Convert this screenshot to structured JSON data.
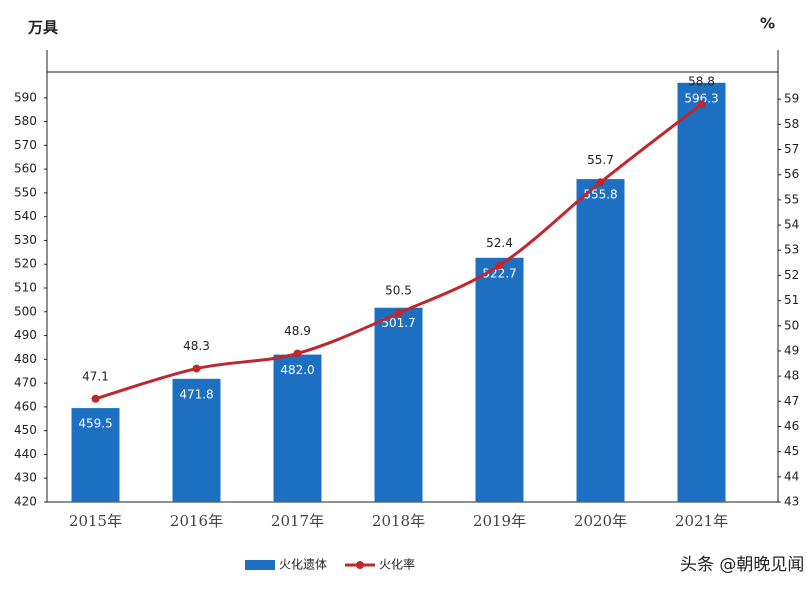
{
  "chart_data": {
    "type": "bar-line",
    "y_unit": "万具",
    "y2_unit": "%",
    "categories": [
      "2015年",
      "2016年",
      "2017年",
      "2018年",
      "2019年",
      "2020年",
      "2021年"
    ],
    "series": [
      {
        "name": "火化遗体",
        "type": "bar",
        "color": "#1c6fc1",
        "values": [
          459.5,
          471.8,
          482,
          501.7,
          522.7,
          555.8,
          596.3
        ],
        "value_labels": [
          "459.5",
          "471.8",
          "482.0",
          "501.7",
          "522.7",
          "555.8",
          "596.3"
        ]
      },
      {
        "name": "火化率",
        "type": "line",
        "axis": "y2",
        "color": "#c0272d",
        "values": [
          47.1,
          48.3,
          48.9,
          50.5,
          52.4,
          55.7,
          58.8
        ]
      }
    ],
    "ylim": [
      420,
      600
    ],
    "yticks": [
      420,
      430,
      440,
      450,
      460,
      470,
      480,
      490,
      500,
      510,
      520,
      530,
      540,
      550,
      560,
      570,
      580,
      590
    ],
    "y2lim": [
      43,
      60
    ],
    "y2ticks": [
      43,
      44,
      45,
      46,
      47,
      48,
      49,
      50,
      51,
      52,
      53,
      54,
      55,
      56,
      57,
      58,
      59
    ],
    "grid": false,
    "legend": "bottom",
    "watermark": "头条 @朝晚见闻"
  }
}
